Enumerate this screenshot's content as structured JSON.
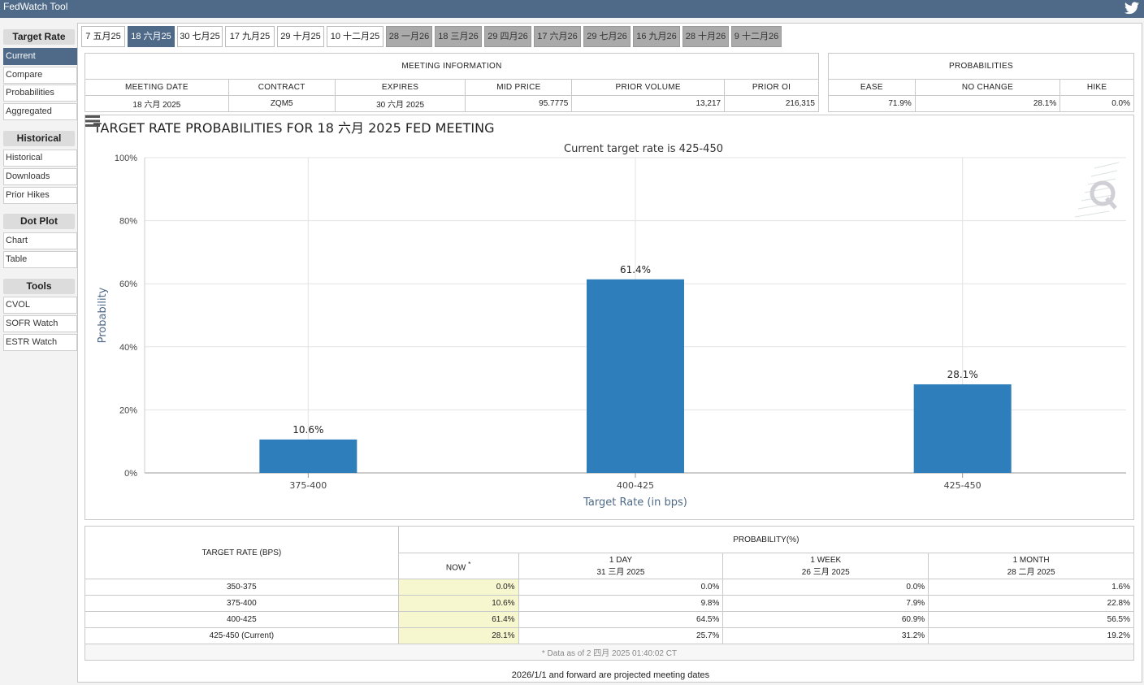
{
  "app": {
    "title": "FedWatch Tool"
  },
  "sidebar": {
    "sections": [
      {
        "header": "Target Rate",
        "items": [
          "Current",
          "Compare",
          "Probabilities",
          "Aggregated"
        ]
      },
      {
        "header": "Historical",
        "items": [
          "Historical",
          "Downloads",
          "Prior Hikes"
        ]
      },
      {
        "header": "Dot Plot",
        "items": [
          "Chart",
          "Table"
        ]
      },
      {
        "header": "Tools",
        "items": [
          "CVOL",
          "SOFR Watch",
          "ESTR Watch"
        ]
      }
    ],
    "active_item": "Current"
  },
  "tabs": [
    {
      "label": "7 五月25",
      "state": "normal"
    },
    {
      "label": "18 六月25",
      "state": "active"
    },
    {
      "label": "30 七月25",
      "state": "normal"
    },
    {
      "label": "17 九月25",
      "state": "normal"
    },
    {
      "label": "29 十月25",
      "state": "normal"
    },
    {
      "label": "10 十二月25",
      "state": "normal"
    },
    {
      "label": "28 一月26",
      "state": "future"
    },
    {
      "label": "18 三月26",
      "state": "future"
    },
    {
      "label": "29 四月26",
      "state": "future"
    },
    {
      "label": "17 六月26",
      "state": "future"
    },
    {
      "label": "29 七月26",
      "state": "future"
    },
    {
      "label": "16 九月26",
      "state": "future"
    },
    {
      "label": "28 十月26",
      "state": "future"
    },
    {
      "label": "9 十二月26",
      "state": "future"
    }
  ],
  "meeting_info": {
    "caption": "MEETING INFORMATION",
    "headers": [
      "MEETING DATE",
      "CONTRACT",
      "EXPIRES",
      "MID PRICE",
      "PRIOR VOLUME",
      "PRIOR OI"
    ],
    "values": [
      "18 六月 2025",
      "ZQM5",
      "30 六月 2025",
      "95.7775",
      "13,217",
      "216,315"
    ]
  },
  "probabilities": {
    "caption": "PROBABILITIES",
    "headers": [
      "EASE",
      "NO CHANGE",
      "HIKE"
    ],
    "values": [
      "71.9%",
      "28.1%",
      "0.0%"
    ]
  },
  "chart_data": {
    "type": "bar",
    "title": "TARGET RATE PROBABILITIES FOR 18 六月 2025 FED MEETING",
    "subtitle": "Current target rate is 425-450",
    "xlabel": "Target Rate (in bps)",
    "ylabel": "Probability",
    "categories": [
      "375-400",
      "400-425",
      "425-450"
    ],
    "values": [
      10.6,
      61.4,
      28.1
    ],
    "data_labels": [
      "10.6%",
      "61.4%",
      "28.1%"
    ],
    "ylim": [
      0,
      100
    ],
    "yticks": [
      "0%",
      "20%",
      "40%",
      "60%",
      "80%",
      "100%"
    ],
    "grid": true,
    "bar_color": "#2f7ebc"
  },
  "prob_table": {
    "col_target": "TARGET RATE (BPS)",
    "col_group": "PROBABILITY(%)",
    "sub_headers": [
      {
        "line1": "NOW",
        "line2": ""
      },
      {
        "line1": "1 DAY",
        "line2": "31 三月 2025"
      },
      {
        "line1": "1 WEEK",
        "line2": "26 三月 2025"
      },
      {
        "line1": "1 MONTH",
        "line2": "28 二月 2025"
      }
    ],
    "now_marker": "*",
    "rows": [
      {
        "rate": "350-375",
        "values": [
          "0.0%",
          "0.0%",
          "0.0%",
          "1.6%"
        ]
      },
      {
        "rate": "375-400",
        "values": [
          "10.6%",
          "9.8%",
          "7.9%",
          "22.8%"
        ]
      },
      {
        "rate": "400-425",
        "values": [
          "61.4%",
          "64.5%",
          "60.9%",
          "56.5%"
        ]
      },
      {
        "rate": "425-450 (Current)",
        "values": [
          "28.1%",
          "25.7%",
          "31.2%",
          "19.2%"
        ]
      }
    ],
    "data_note": "* Data as of 2 四月 2025 01:40:02 CT"
  },
  "footer_note": "2026/1/1 and forward are projected meeting dates"
}
